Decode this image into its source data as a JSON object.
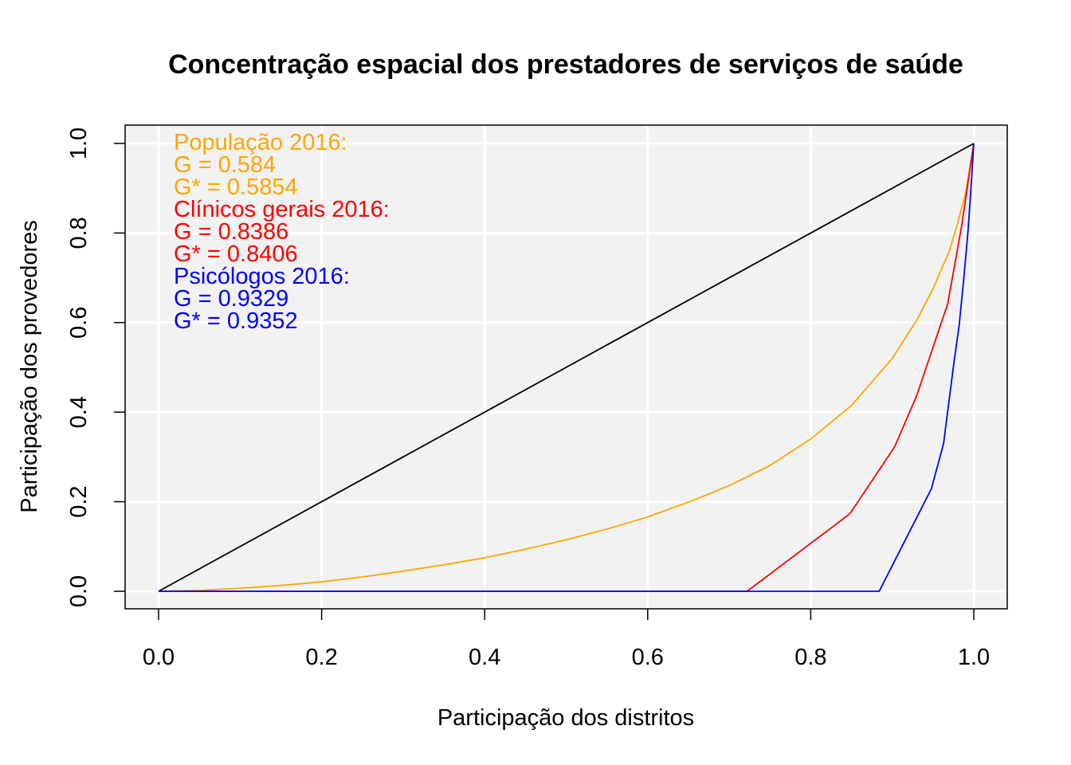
{
  "chart_data": {
    "type": "line",
    "title": "Concentração espacial dos prestadores de serviços de saúde",
    "xlabel": "Participação dos distritos",
    "ylabel": "Participação dos provedores",
    "xlim": [
      0,
      1
    ],
    "ylim": [
      0,
      1
    ],
    "grid": true,
    "background": "#f2f2f2",
    "x_ticks": [
      "0.0",
      "0.2",
      "0.4",
      "0.6",
      "0.8",
      "1.0"
    ],
    "y_ticks": [
      "0.0",
      "0.2",
      "0.4",
      "0.6",
      "0.8",
      "1.0"
    ],
    "series": [
      {
        "color": "#000000",
        "x": [
          0,
          1
        ],
        "y": [
          0,
          1
        ]
      },
      {
        "name": "População 2016",
        "color": "#FFA500",
        "x": [
          0,
          0.05,
          0.1,
          0.15,
          0.2,
          0.25,
          0.3,
          0.35,
          0.4,
          0.45,
          0.5,
          0.55,
          0.6,
          0.65,
          0.7,
          0.75,
          0.8,
          0.85,
          0.9,
          0.93,
          0.95,
          0.97,
          0.98,
          0.99,
          1.0
        ],
        "y": [
          0,
          0.002,
          0.007,
          0.013,
          0.021,
          0.032,
          0.045,
          0.059,
          0.075,
          0.094,
          0.115,
          0.139,
          0.166,
          0.199,
          0.236,
          0.281,
          0.34,
          0.415,
          0.52,
          0.605,
          0.675,
          0.76,
          0.82,
          0.89,
          1.0
        ]
      },
      {
        "name": "Clínicos gerais 2016",
        "color": "#FF0000",
        "x": [
          0,
          0.722,
          0.848,
          0.903,
          0.93,
          0.968,
          0.985,
          1.0
        ],
        "y": [
          0,
          0,
          0.173,
          0.323,
          0.437,
          0.642,
          0.815,
          1.0
        ]
      },
      {
        "name": "Psicólogos 2016",
        "color": "#0000FF",
        "x": [
          0,
          0.884,
          0.948,
          0.963,
          0.976,
          0.982,
          0.988,
          0.993,
          0.997,
          1.0
        ],
        "y": [
          0,
          0,
          0.229,
          0.33,
          0.515,
          0.593,
          0.703,
          0.805,
          0.91,
          1.0
        ]
      }
    ],
    "annotations": [
      {
        "text": "População 2016:",
        "color": "#FFA500"
      },
      {
        "text": "G = 0.584",
        "color": "#FFA500"
      },
      {
        "text": "G* = 0.5854",
        "color": "#FFA500"
      },
      {
        "text": "Clínicos gerais 2016:",
        "color": "#FF0000"
      },
      {
        "text": "G = 0.8386",
        "color": "#FF0000"
      },
      {
        "text": "G* = 0.8406",
        "color": "#FF0000"
      },
      {
        "text": "Psicólogos 2016:",
        "color": "#0000FF"
      },
      {
        "text": "G = 0.9329",
        "color": "#0000FF"
      },
      {
        "text": "G* = 0.9352",
        "color": "#0000FF"
      }
    ]
  }
}
